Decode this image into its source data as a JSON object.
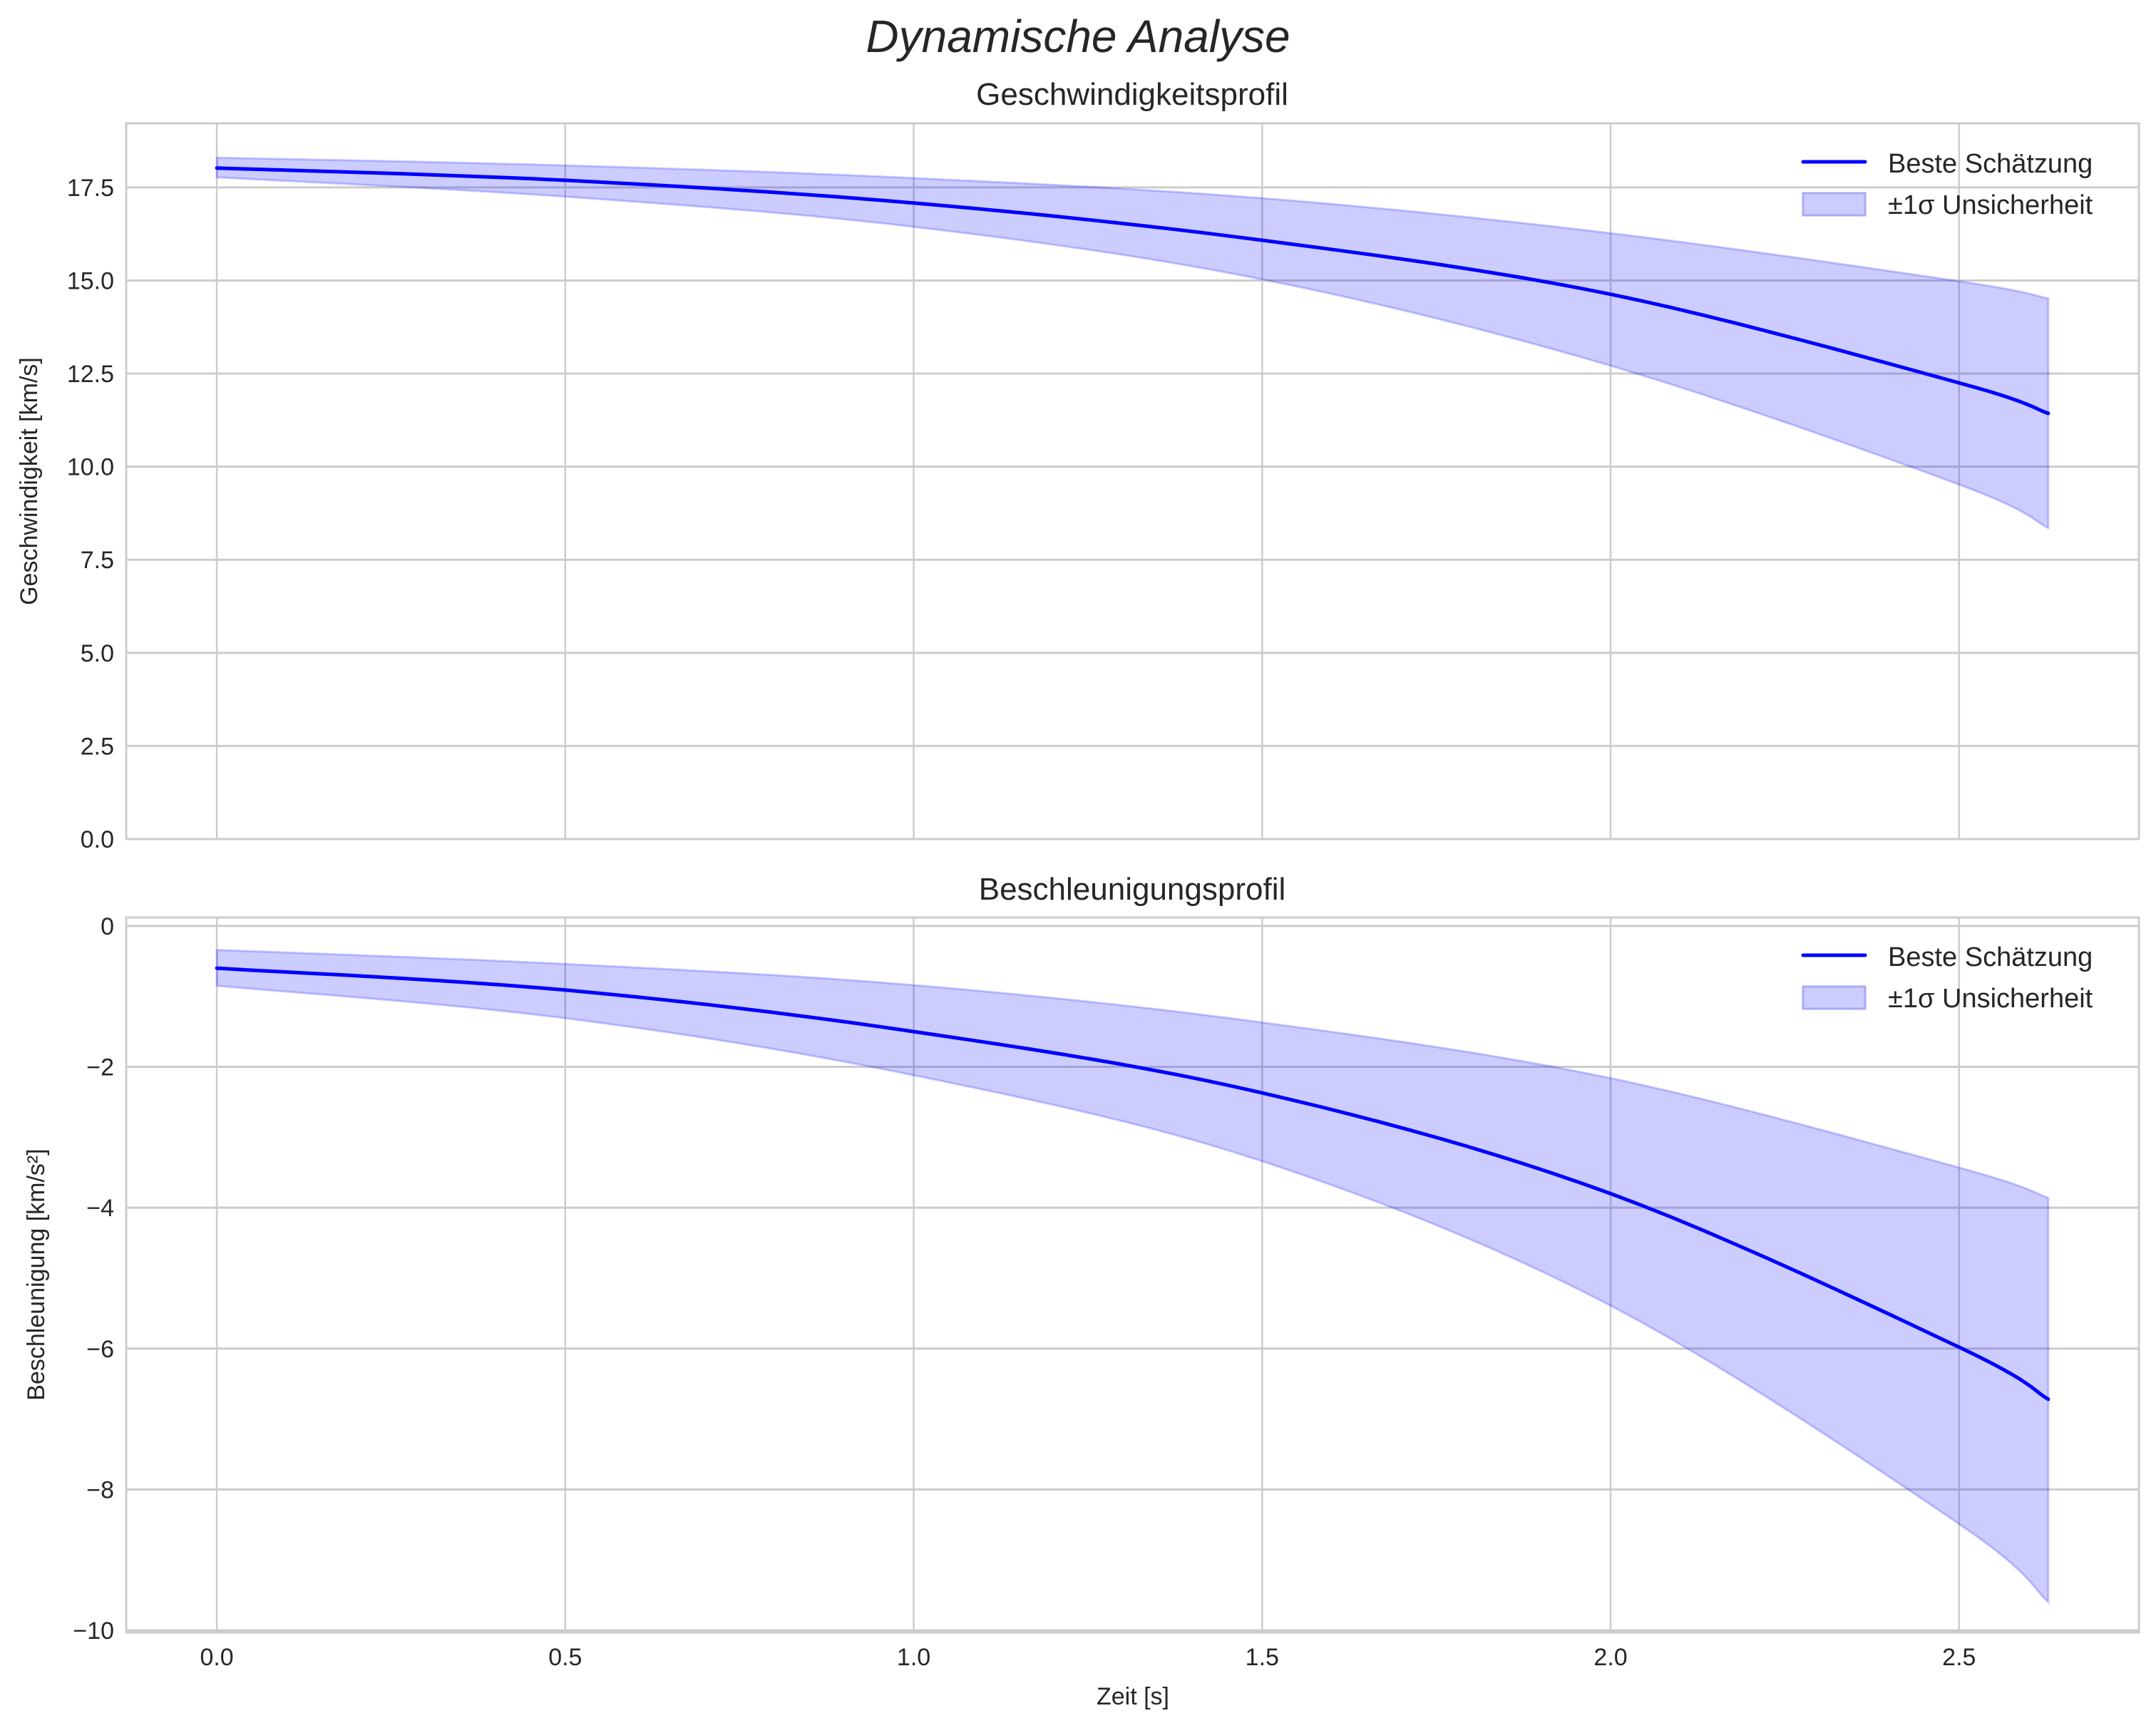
{
  "figure": {
    "suptitle": "Dynamische Analyse",
    "xlabel": "Zeit [s]"
  },
  "colors": {
    "line": "#0000ff",
    "band_fill": "#ccccff",
    "band_edge": "#9999f0",
    "grid": "#cccccc",
    "spine": "#cccccc",
    "text": "#262626"
  },
  "chart_data": [
    {
      "type": "line",
      "title": "Geschwindigkeitsprofil",
      "xlabel": "",
      "ylabel": "Geschwindigkeit [km/s]",
      "xlim": [
        -0.13,
        2.758
      ],
      "ylim": [
        0,
        19.22
      ],
      "xticks": [
        0.0,
        0.5,
        1.0,
        1.5,
        2.0,
        2.5
      ],
      "xtick_labels": [],
      "yticks": [
        0.0,
        2.5,
        5.0,
        7.5,
        10.0,
        12.5,
        15.0,
        17.5
      ],
      "ytick_labels": [
        "0.0",
        "2.5",
        "5.0",
        "7.5",
        "10.0",
        "12.5",
        "15.0",
        "17.5"
      ],
      "grid": true,
      "legend_position": "upper right",
      "legend": [
        "Beste Schätzung",
        "±1σ Unsicherheit"
      ],
      "x": [
        0.0,
        0.5,
        1.0,
        1.5,
        2.0,
        2.5,
        2.628
      ],
      "series": [
        {
          "name": "Beste Schätzung",
          "kind": "line",
          "values": [
            18.02,
            17.69,
            17.08,
            16.08,
            14.63,
            12.25,
            11.43
          ]
        },
        {
          "name": "±1σ Unsicherheit (oben)",
          "kind": "band_upper",
          "values": [
            18.3,
            18.09,
            17.75,
            17.21,
            16.27,
            14.98,
            14.52
          ]
        },
        {
          "name": "±1σ Unsicherheit (unten)",
          "kind": "band_lower",
          "values": [
            17.77,
            17.25,
            16.44,
            15.03,
            12.71,
            9.52,
            8.35
          ]
        }
      ]
    },
    {
      "type": "line",
      "title": "Beschleunigungsprofil",
      "xlabel": "Zeit [s]",
      "ylabel": "Beschleunigung [km/s²]",
      "xlim": [
        -0.13,
        2.758
      ],
      "ylim": [
        -10.03,
        0.12
      ],
      "xticks": [
        0.0,
        0.5,
        1.0,
        1.5,
        2.0,
        2.5
      ],
      "xtick_labels": [
        "0.0",
        "0.5",
        "1.0",
        "1.5",
        "2.0",
        "2.5"
      ],
      "yticks": [
        -10,
        -8,
        -6,
        -4,
        -2,
        0
      ],
      "ytick_labels": [
        "−10",
        "−8",
        "−6",
        "−4",
        "−2",
        "0"
      ],
      "grid": true,
      "legend_position": "upper right",
      "legend": [
        "Beste Schätzung",
        "±1σ Unsicherheit"
      ],
      "x": [
        0.0,
        0.5,
        1.0,
        1.5,
        2.0,
        2.5,
        2.628
      ],
      "series": [
        {
          "name": "Beste Schätzung",
          "kind": "line",
          "values": [
            -0.6,
            -0.91,
            -1.5,
            -2.37,
            -3.8,
            -5.98,
            -6.72
          ]
        },
        {
          "name": "±1σ Unsicherheit (oben)",
          "kind": "band_upper",
          "values": [
            -0.34,
            -0.54,
            -0.84,
            -1.37,
            -2.16,
            -3.43,
            -3.86
          ]
        },
        {
          "name": "±1σ Unsicherheit (unten)",
          "kind": "band_lower",
          "values": [
            -0.85,
            -1.31,
            -2.12,
            -3.34,
            -5.39,
            -8.49,
            -9.6
          ]
        }
      ]
    }
  ]
}
